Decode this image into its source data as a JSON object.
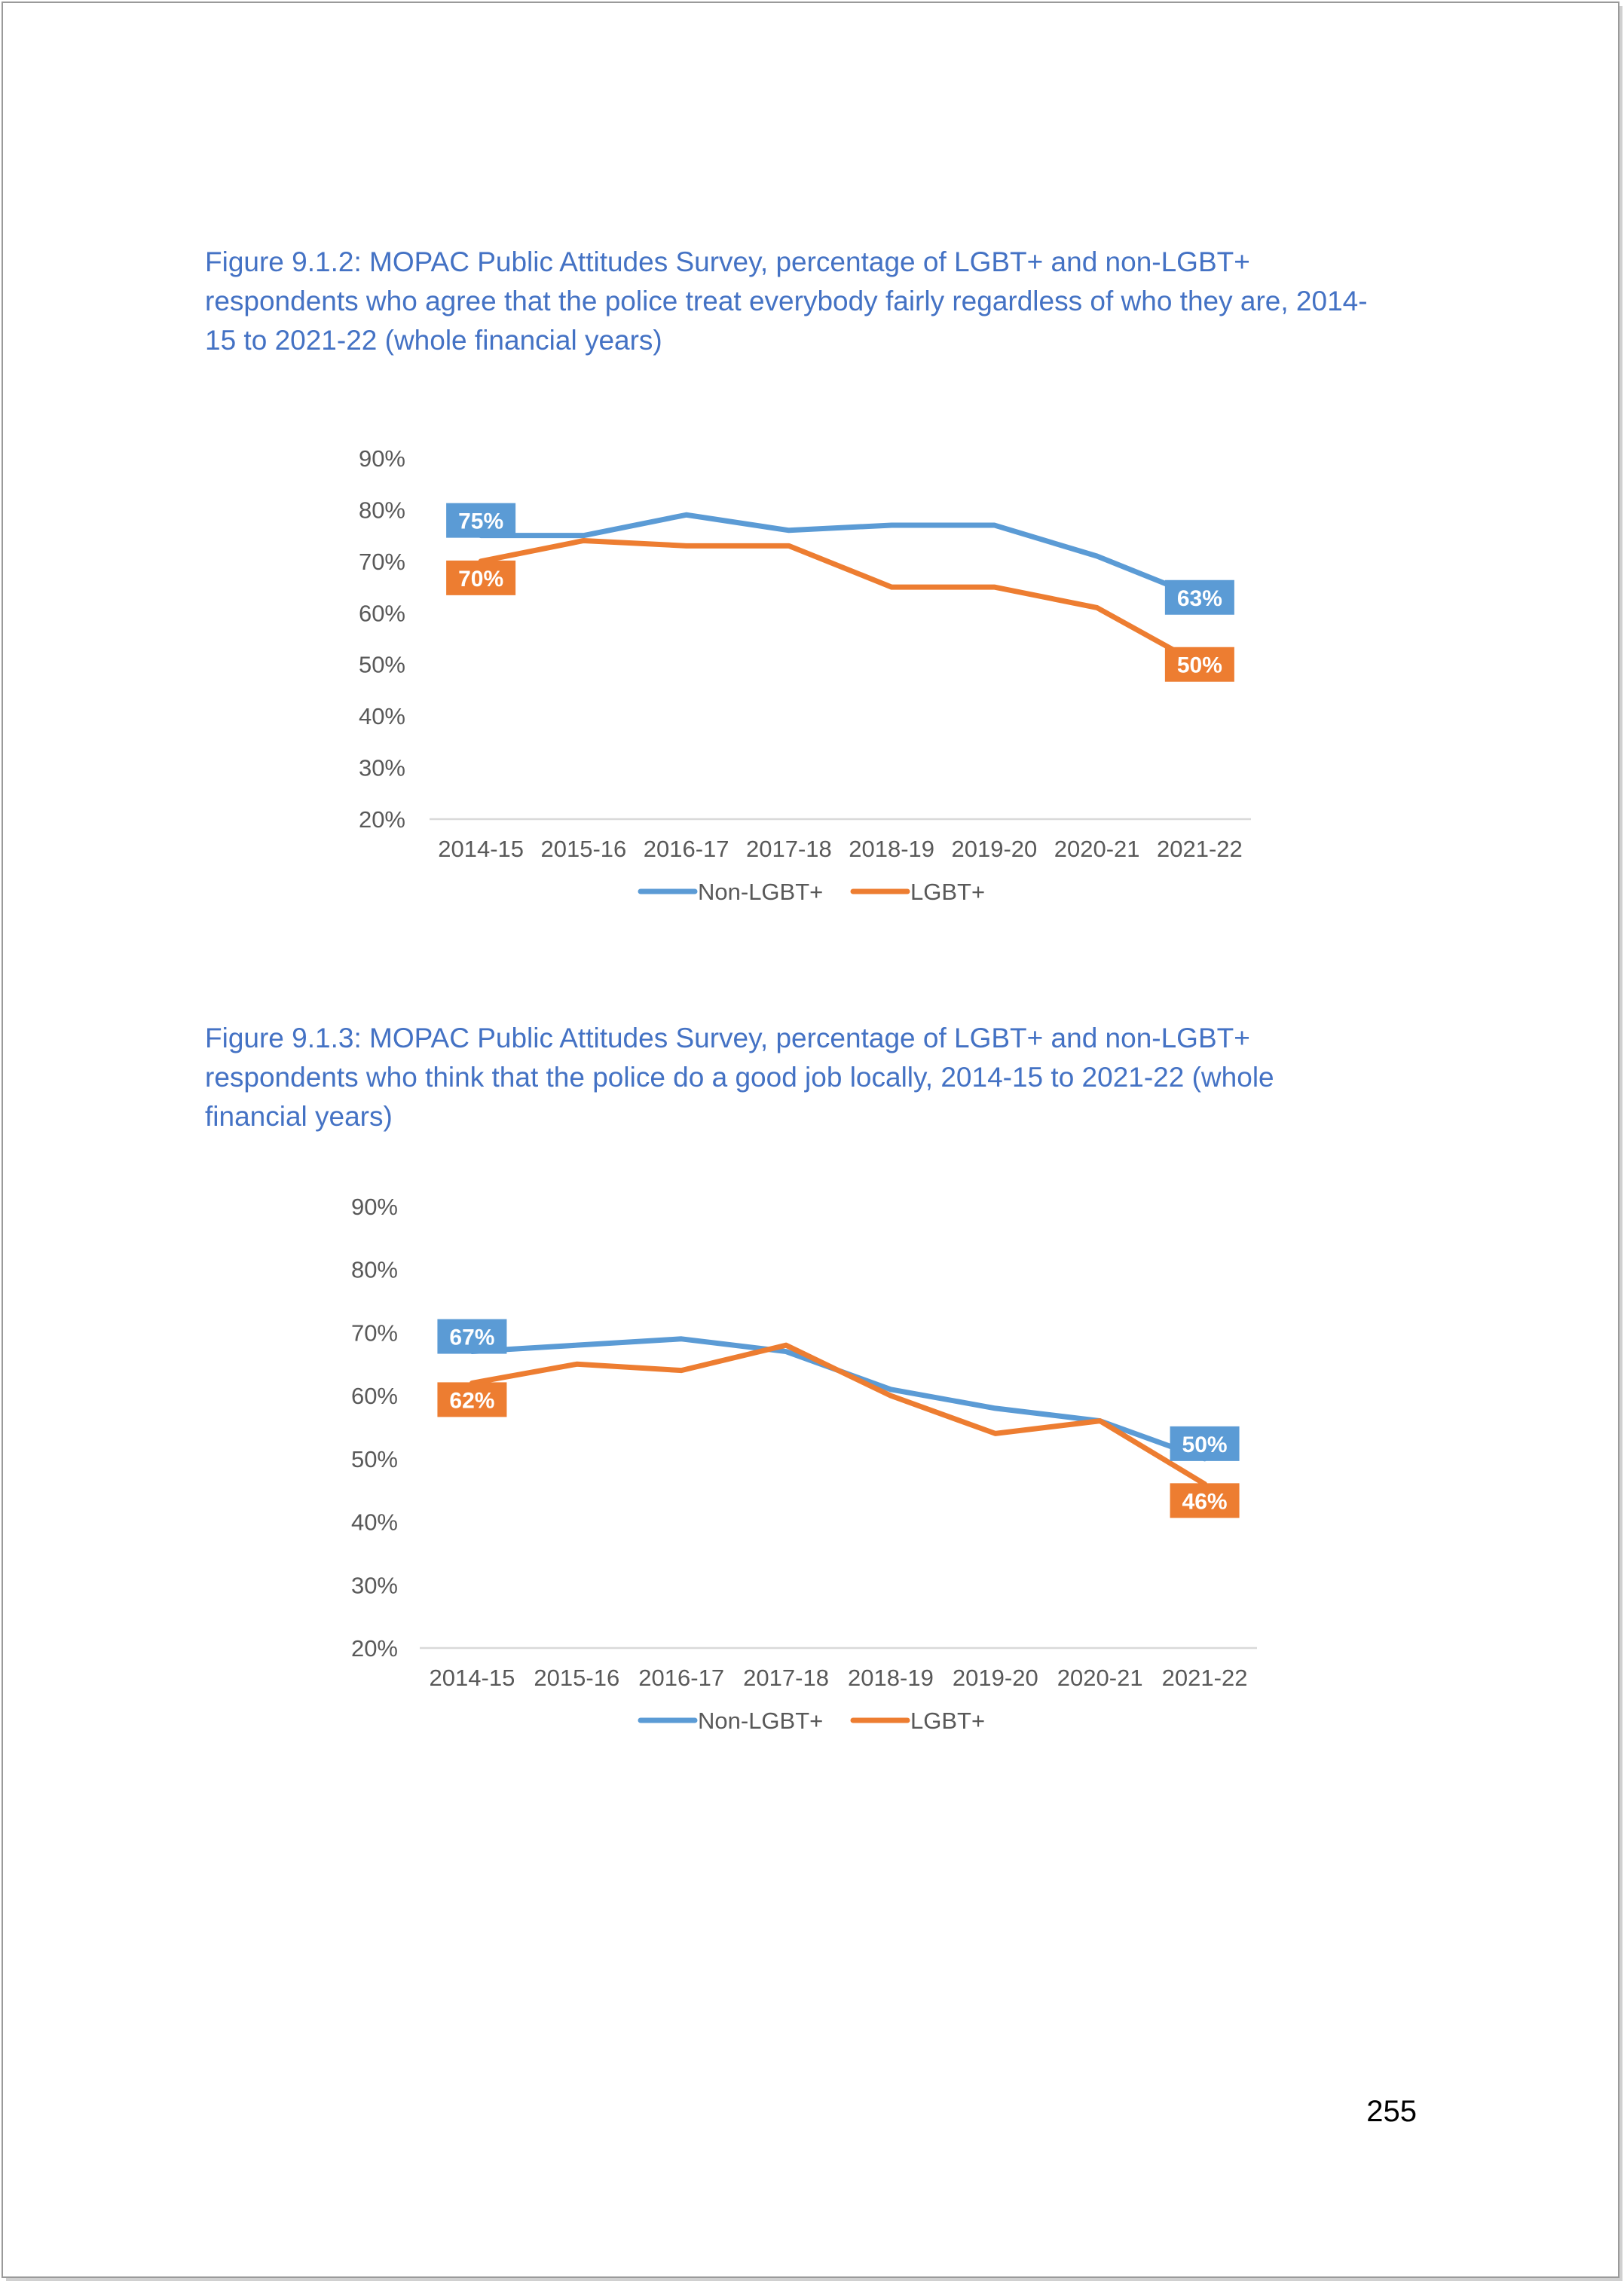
{
  "captions": {
    "figure1": "Figure 9.1.2: MOPAC Public Attitudes Survey, percentage of LGBT+ and non-LGBT+ respondents who agree that the police treat everybody fairly regardless of who they are, 2014-15 to 2021-22 (whole financial years)",
    "figure2": "Figure 9.1.3: MOPAC Public Attitudes Survey, percentage of LGBT+ and non-LGBT+ respondents who think that the police do a good job locally, 2014-15 to 2021-22 (whole financial years)"
  },
  "page_number": "255",
  "colors": {
    "non_lgbt": "#5b9bd5",
    "lgbt": "#ed7d31",
    "axis_text": "#595959",
    "axis_line": "#d9d9d9"
  },
  "chart_data": [
    {
      "type": "line",
      "categories": [
        "2014-15",
        "2015-16",
        "2016-17",
        "2017-18",
        "2018-19",
        "2019-20",
        "2020-21",
        "2021-22"
      ],
      "series": [
        {
          "name": "Non-LGBT+",
          "values": [
            75,
            75,
            79,
            76,
            77,
            77,
            71,
            63
          ],
          "labels": [
            "75%",
            "",
            "",
            "",
            "",
            "",
            "",
            "63%"
          ]
        },
        {
          "name": "LGBT+",
          "values": [
            70,
            74,
            73,
            73,
            65,
            65,
            61,
            50
          ],
          "labels": [
            "70%",
            "",
            "",
            "",
            "",
            "",
            "",
            "50%"
          ]
        }
      ],
      "ylim": [
        20,
        90
      ],
      "yticks": [
        "20%",
        "30%",
        "40%",
        "50%",
        "60%",
        "70%",
        "80%",
        "90%"
      ],
      "grid": false,
      "legend": "bottom"
    },
    {
      "type": "line",
      "categories": [
        "2014-15",
        "2015-16",
        "2016-17",
        "2017-18",
        "2018-19",
        "2019-20",
        "2020-21",
        "2021-22"
      ],
      "series": [
        {
          "name": "Non-LGBT+",
          "values": [
            67,
            68,
            69,
            67,
            61,
            58,
            56,
            50
          ],
          "labels": [
            "67%",
            "",
            "",
            "",
            "",
            "",
            "",
            "50%"
          ]
        },
        {
          "name": "LGBT+",
          "values": [
            62,
            65,
            64,
            68,
            60,
            54,
            56,
            46
          ],
          "labels": [
            "62%",
            "",
            "",
            "",
            "",
            "",
            "",
            "46%"
          ]
        }
      ],
      "ylim": [
        20,
        90
      ],
      "yticks": [
        "20%",
        "30%",
        "40%",
        "50%",
        "60%",
        "70%",
        "80%",
        "90%"
      ],
      "grid": false,
      "legend": "bottom"
    }
  ]
}
